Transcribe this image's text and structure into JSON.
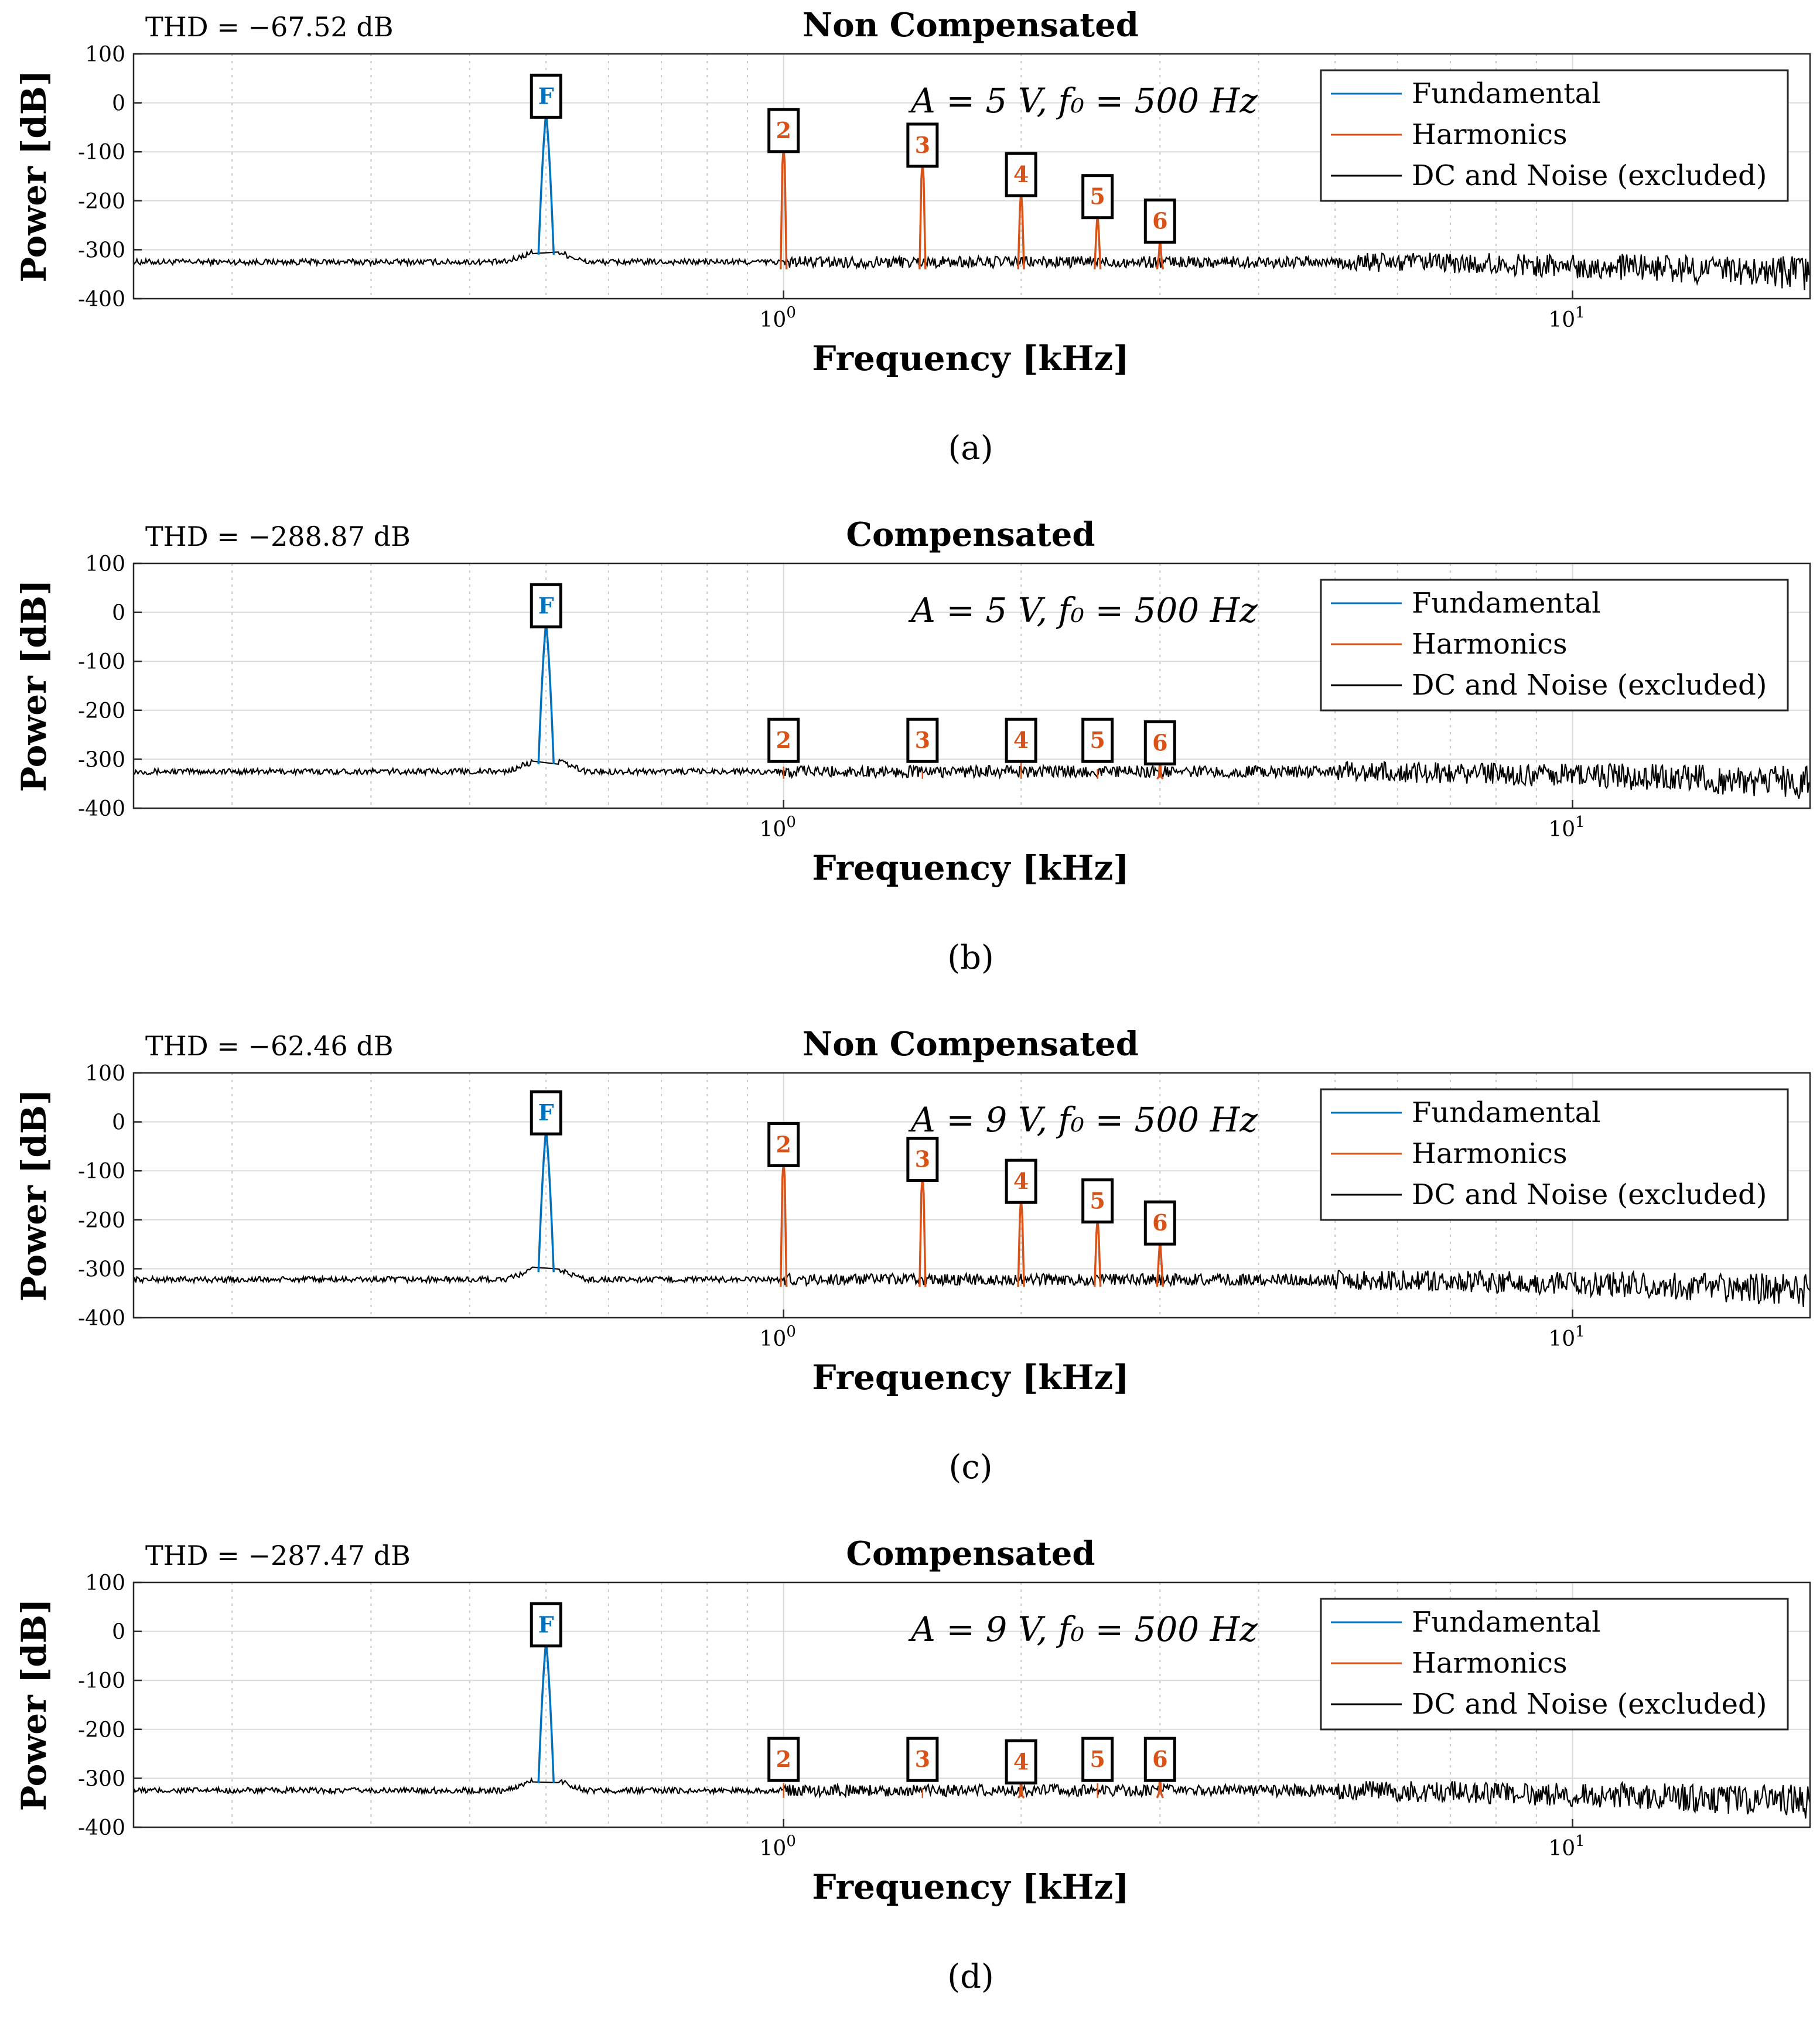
{
  "figure": {
    "xlabel": "Frequency [kHz]",
    "ylabel": "Power [dB]"
  },
  "colors": {
    "fundamental": "#0072BD",
    "harmonics": "#D95319",
    "noise": "#000000",
    "grid": "#d9d9d9"
  },
  "chart_data": [
    {
      "type": "line",
      "panel": "a",
      "title": "Non Compensated",
      "thd_label": "THD = −67.52 dB",
      "annotation": "A = 5 V,  f₀ = 500 Hz",
      "caption": "(a)",
      "xlabel": "Frequency [kHz]",
      "ylabel": "Power [dB]",
      "xscale": "log",
      "xlim": [
        0.15,
        20
      ],
      "ylim": [
        -400,
        100
      ],
      "yticks": [
        100,
        0,
        -100,
        -200,
        -300,
        -400
      ],
      "xticks": [
        {
          "value": 1,
          "base": "10",
          "exp": "0"
        },
        {
          "value": 10,
          "base": "10",
          "exp": "1"
        }
      ],
      "legend": [
        "Fundamental",
        "Harmonics",
        "DC and Noise (excluded)"
      ],
      "noise_floor": -325,
      "fundamental": {
        "label": "F",
        "x": 0.5,
        "y": -20
      },
      "harmonics": [
        {
          "label": "2",
          "x": 1.0,
          "y": -90
        },
        {
          "label": "3",
          "x": 1.5,
          "y": -120
        },
        {
          "label": "4",
          "x": 2.0,
          "y": -180
        },
        {
          "label": "5",
          "x": 2.5,
          "y": -225
        },
        {
          "label": "6",
          "x": 3.0,
          "y": -275
        }
      ]
    },
    {
      "type": "line",
      "panel": "b",
      "title": "Compensated",
      "thd_label": "THD = −288.87 dB",
      "annotation": "A = 5 V,  f₀ = 500 Hz",
      "caption": "(b)",
      "xlabel": "Frequency [kHz]",
      "ylabel": "Power [dB]",
      "xscale": "log",
      "xlim": [
        0.15,
        20
      ],
      "ylim": [
        -400,
        100
      ],
      "yticks": [
        100,
        0,
        -100,
        -200,
        -300,
        -400
      ],
      "xticks": [
        {
          "value": 1,
          "base": "10",
          "exp": "0"
        },
        {
          "value": 10,
          "base": "10",
          "exp": "1"
        }
      ],
      "legend": [
        "Fundamental",
        "Harmonics",
        "DC and Noise (excluded)"
      ],
      "noise_floor": -325,
      "fundamental": {
        "label": "F",
        "x": 0.5,
        "y": -20
      },
      "harmonics": [
        {
          "label": "2",
          "x": 1.0,
          "y": -315
        },
        {
          "label": "3",
          "x": 1.5,
          "y": -325
        },
        {
          "label": "4",
          "x": 2.0,
          "y": -305
        },
        {
          "label": "5",
          "x": 2.5,
          "y": -320
        },
        {
          "label": "6",
          "x": 3.0,
          "y": -300
        }
      ]
    },
    {
      "type": "line",
      "panel": "c",
      "title": "Non Compensated",
      "thd_label": "THD = −62.46 dB",
      "annotation": "A = 9 V,  f₀ = 500 Hz",
      "caption": "(c)",
      "xlabel": "Frequency [kHz]",
      "ylabel": "Power [dB]",
      "xscale": "log",
      "xlim": [
        0.15,
        20
      ],
      "ylim": [
        -400,
        100
      ],
      "yticks": [
        100,
        0,
        -100,
        -200,
        -300,
        -400
      ],
      "xticks": [
        {
          "value": 1,
          "base": "10",
          "exp": "0"
        },
        {
          "value": 10,
          "base": "10",
          "exp": "1"
        }
      ],
      "legend": [
        "Fundamental",
        "Harmonics",
        "DC and Noise (excluded)"
      ],
      "noise_floor": -322,
      "fundamental": {
        "label": "F",
        "x": 0.5,
        "y": -15
      },
      "harmonics": [
        {
          "label": "2",
          "x": 1.0,
          "y": -80
        },
        {
          "label": "3",
          "x": 1.5,
          "y": -110
        },
        {
          "label": "4",
          "x": 2.0,
          "y": -155
        },
        {
          "label": "5",
          "x": 2.5,
          "y": -195
        },
        {
          "label": "6",
          "x": 3.0,
          "y": -240
        }
      ]
    },
    {
      "type": "line",
      "panel": "d",
      "title": "Compensated",
      "thd_label": "THD = −287.47 dB",
      "annotation": "A = 9 V,  f₀ = 500 Hz",
      "caption": "(d)",
      "xlabel": "Frequency [kHz]",
      "ylabel": "Power [dB]",
      "xscale": "log",
      "xlim": [
        0.15,
        20
      ],
      "ylim": [
        -400,
        100
      ],
      "yticks": [
        100,
        0,
        -100,
        -200,
        -300,
        -400
      ],
      "xticks": [
        {
          "value": 1,
          "base": "10",
          "exp": "0"
        },
        {
          "value": 10,
          "base": "10",
          "exp": "1"
        }
      ],
      "legend": [
        "Fundamental",
        "Harmonics",
        "DC and Noise (excluded)"
      ],
      "noise_floor": -325,
      "fundamental": {
        "label": "F",
        "x": 0.5,
        "y": -20
      },
      "harmonics": [
        {
          "label": "2",
          "x": 1.0,
          "y": -310
        },
        {
          "label": "3",
          "x": 1.5,
          "y": -320
        },
        {
          "label": "4",
          "x": 2.0,
          "y": -300
        },
        {
          "label": "5",
          "x": 2.5,
          "y": -310
        },
        {
          "label": "6",
          "x": 3.0,
          "y": -295
        }
      ]
    }
  ]
}
